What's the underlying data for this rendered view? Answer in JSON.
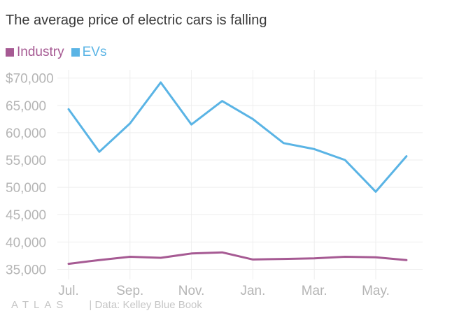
{
  "title": "The average price of electric cars is falling",
  "footer": {
    "logo": "ATLAS",
    "source": "| Data: Kelley Blue Book"
  },
  "colors": {
    "industry": "#a65a93",
    "evs": "#5ab4e5",
    "grid": "#eeeeee",
    "axis_text": "#b5b5b5"
  },
  "chart_data": {
    "type": "line",
    "title": "The average price of electric cars is falling",
    "x": [
      "Jul.",
      "Aug.",
      "Sep.",
      "Oct.",
      "Nov.",
      "Dec.",
      "Jan.",
      "Feb.",
      "Mar.",
      "Apr.",
      "May.",
      "Jun."
    ],
    "x_tick_labels": [
      "Jul.",
      "Sep.",
      "Nov.",
      "Jan.",
      "Mar.",
      "May."
    ],
    "y_tick_labels": [
      "$70,000",
      "65,000",
      "60,000",
      "55,000",
      "50,000",
      "45,000",
      "40,000",
      "35,000"
    ],
    "y_ticks": [
      70000,
      65000,
      60000,
      55000,
      50000,
      45000,
      40000,
      35000
    ],
    "ylim": [
      32500,
      71500
    ],
    "legend_position": "top-left",
    "grid": true,
    "series": [
      {
        "name": "Industry",
        "color": "#a65a93",
        "values": [
          36000,
          36700,
          37300,
          37100,
          37900,
          38100,
          36800,
          36900,
          37000,
          37300,
          37200,
          36700
        ]
      },
      {
        "name": "EVs",
        "color": "#5ab4e5",
        "values": [
          64300,
          56500,
          61700,
          69200,
          61500,
          65800,
          62500,
          58100,
          57000,
          55000,
          49200,
          55700
        ]
      }
    ]
  }
}
